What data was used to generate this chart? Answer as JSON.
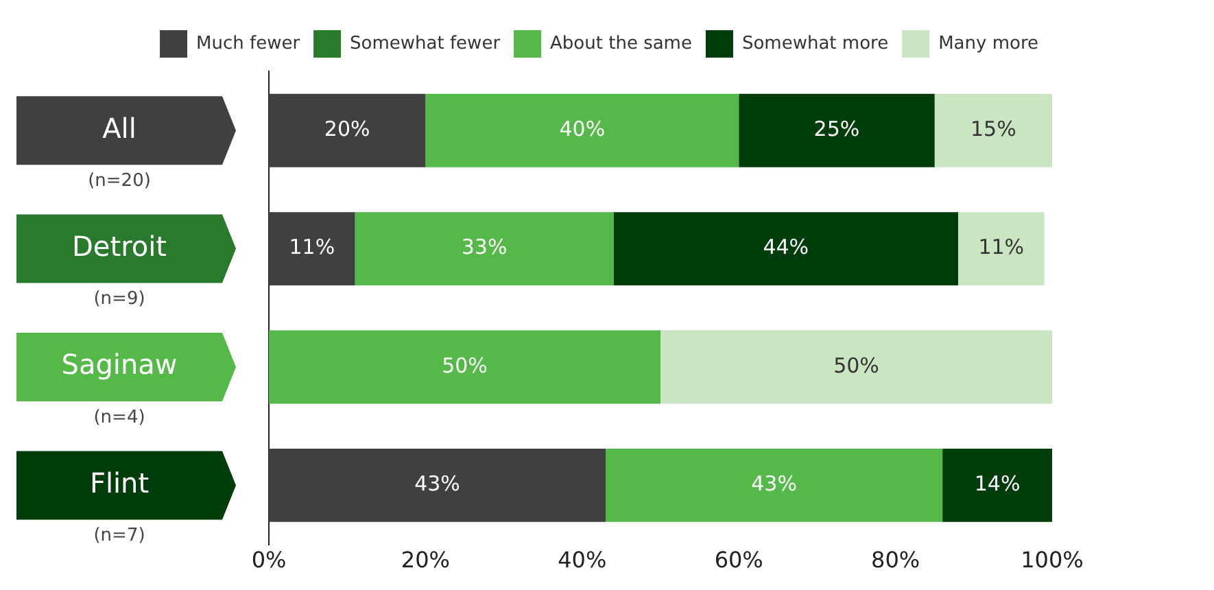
{
  "chart_data": {
    "type": "bar",
    "orientation": "horizontal",
    "stacked": true,
    "categories": [
      "All",
      "Detroit",
      "Saginaw",
      "Flint"
    ],
    "series": [
      {
        "name": "Much fewer",
        "color": "#404040",
        "values": [
          20,
          11,
          null,
          43
        ],
        "value_labels": [
          "20%",
          "11%",
          null,
          "43%"
        ]
      },
      {
        "name": "Somewhat fewer",
        "color": "#2a7a2e",
        "values": [
          null,
          null,
          null,
          null
        ],
        "value_labels": [
          null,
          null,
          null,
          null
        ]
      },
      {
        "name": "About the same",
        "color": "#55b94a",
        "values": [
          40,
          33,
          50,
          43
        ],
        "value_labels": [
          "40%",
          "33%",
          "50%",
          "43%"
        ]
      },
      {
        "name": "Somewhat more",
        "color": "#003d0a",
        "values": [
          25,
          44,
          null,
          14
        ],
        "value_labels": [
          "25%",
          "44%",
          null,
          "14%"
        ]
      },
      {
        "name": "Many more",
        "color": "#c9e5c2",
        "values": [
          15,
          11,
          50,
          null
        ],
        "value_labels": [
          "15%",
          "11%",
          "50%",
          null
        ]
      }
    ],
    "xlim": [
      0,
      100
    ],
    "xticks": [
      {
        "value": 0,
        "label": "0%"
      },
      {
        "value": 20,
        "label": "20%"
      },
      {
        "value": 40,
        "label": "40%"
      },
      {
        "value": 60,
        "label": "60%"
      },
      {
        "value": 80,
        "label": "80%"
      },
      {
        "value": 100,
        "label": "100%"
      }
    ],
    "annotations": [
      "(n=20)",
      "(n=9)",
      "(n=4)",
      "(n=7)"
    ],
    "legend": "top",
    "grid": false
  }
}
